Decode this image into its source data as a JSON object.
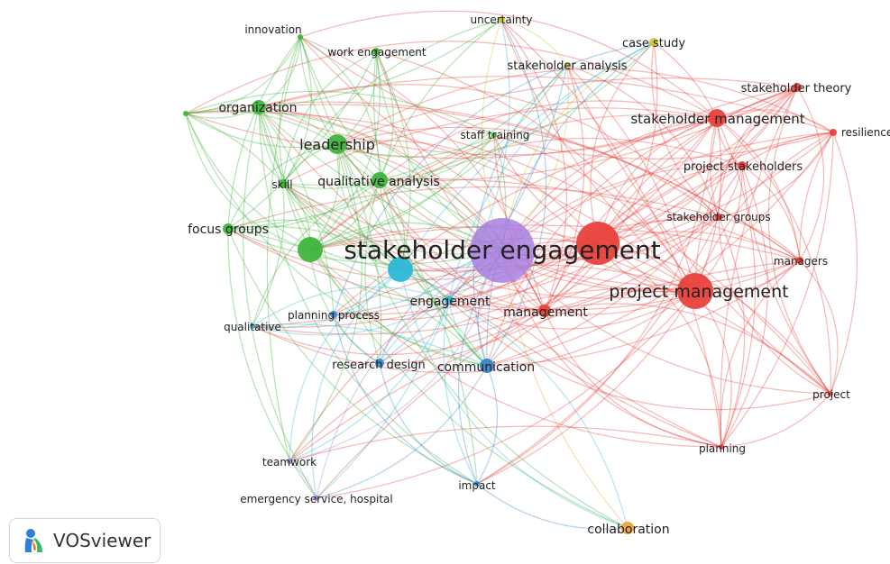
{
  "app": {
    "logo_text": "VOSviewer"
  },
  "network": {
    "cluster_colors": {
      "red": "#e8413c",
      "green": "#3fb43c",
      "blue": "#3a86c8",
      "cyan": "#2cb8d6",
      "yellow": "#c9c93a",
      "purple": "#a77fe0",
      "orange": "#f0a33a"
    },
    "nodes": [
      {
        "id": "stakeholder-engagement",
        "label": "stakeholder engagement",
        "cluster": "purple"
      },
      {
        "id": "project-management",
        "label": "project management",
        "cluster": "red"
      },
      {
        "id": "stakeholder-management",
        "label": "stakeholder management",
        "cluster": "red"
      },
      {
        "id": "stakeholder-theory",
        "label": "stakeholder theory",
        "cluster": "red"
      },
      {
        "id": "resilience",
        "label": "resilience",
        "cluster": "red"
      },
      {
        "id": "project-stakeholders",
        "label": "project stakeholders",
        "cluster": "red"
      },
      {
        "id": "stakeholder-groups",
        "label": "stakeholder groups",
        "cluster": "red"
      },
      {
        "id": "managers",
        "label": "managers",
        "cluster": "red"
      },
      {
        "id": "management",
        "label": "management",
        "cluster": "red"
      },
      {
        "id": "project",
        "label": "project",
        "cluster": "red"
      },
      {
        "id": "planning",
        "label": "planning",
        "cluster": "red"
      },
      {
        "id": "red-hub",
        "label": "",
        "cluster": "red"
      },
      {
        "id": "leadership",
        "label": "leadership",
        "cluster": "green"
      },
      {
        "id": "organization",
        "label": "organization",
        "cluster": "green"
      },
      {
        "id": "qualitative-analysis",
        "label": "qualitative analysis",
        "cluster": "green"
      },
      {
        "id": "skill",
        "label": "skill",
        "cluster": "green"
      },
      {
        "id": "focus-groups",
        "label": "focus groups",
        "cluster": "green"
      },
      {
        "id": "work-engagement",
        "label": "work engagement",
        "cluster": "green"
      },
      {
        "id": "innovation",
        "label": "innovation",
        "cluster": "green"
      },
      {
        "id": "staff-training",
        "label": "staff training",
        "cluster": "green"
      },
      {
        "id": "green-hub",
        "label": "",
        "cluster": "green"
      },
      {
        "id": "green-left",
        "label": "",
        "cluster": "green"
      },
      {
        "id": "engagement",
        "label": "engagement",
        "cluster": "cyan"
      },
      {
        "id": "qualitative",
        "label": "qualitative",
        "cluster": "cyan"
      },
      {
        "id": "cyan-hub",
        "label": "",
        "cluster": "cyan"
      },
      {
        "id": "communication",
        "label": "communication",
        "cluster": "blue"
      },
      {
        "id": "research-design",
        "label": "research design",
        "cluster": "blue"
      },
      {
        "id": "planning-process",
        "label": "planning process",
        "cluster": "blue"
      },
      {
        "id": "impact",
        "label": "impact",
        "cluster": "blue"
      },
      {
        "id": "uncertainty",
        "label": "uncertainty",
        "cluster": "yellow"
      },
      {
        "id": "case-study",
        "label": "case study",
        "cluster": "yellow"
      },
      {
        "id": "stakeholder-analysis",
        "label": "stakeholder analysis",
        "cluster": "yellow"
      },
      {
        "id": "teamwork",
        "label": "teamwork",
        "cluster": "purple"
      },
      {
        "id": "emergency-service-hospital",
        "label": "emergency service, hospital",
        "cluster": "purple"
      },
      {
        "id": "collaboration",
        "label": "collaboration",
        "cluster": "orange"
      }
    ]
  }
}
